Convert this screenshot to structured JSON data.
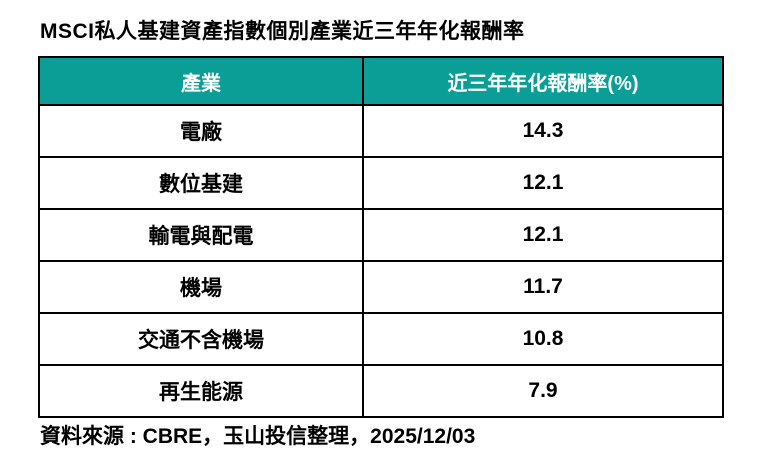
{
  "page": {
    "background_color": "#ffffff",
    "accent_color": "#0a9e96",
    "border_color": "#000000",
    "header_text_color": "#ffffff"
  },
  "title": "MSCI私人基建資產指數個別產業近三年年化報酬率",
  "table": {
    "columns": [
      "產業",
      "近三年年化報酬率(%)"
    ],
    "rows": [
      {
        "industry": "電廠",
        "return": "14.3"
      },
      {
        "industry": "數位基建",
        "return": "12.1"
      },
      {
        "industry": "輸電與配電",
        "return": "12.1"
      },
      {
        "industry": "機場",
        "return": "11.7"
      },
      {
        "industry": "交通不含機場",
        "return": "10.8"
      },
      {
        "industry": "再生能源",
        "return": "7.9"
      }
    ]
  },
  "source_note": "資料來源 : CBRE，玉山投信整理，2025/12/03",
  "chart_data": {
    "type": "table",
    "title": "MSCI私人基建資產指數個別產業近三年年化報酬率",
    "columns": [
      "產業",
      "近三年年化報酬率(%)"
    ],
    "categories": [
      "電廠",
      "數位基建",
      "輸電與配電",
      "機場",
      "交通不含機場",
      "再生能源"
    ],
    "values": [
      14.3,
      12.1,
      12.1,
      11.7,
      10.8,
      7.9
    ],
    "value_unit": "%",
    "source": "資料來源 : CBRE，玉山投信整理，2025/12/03",
    "header_bg": "#0a9e96"
  }
}
